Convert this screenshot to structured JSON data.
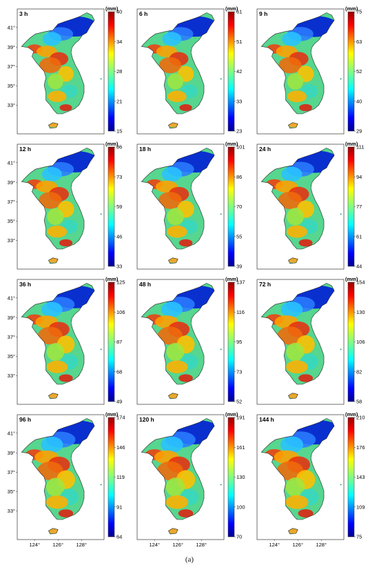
{
  "figure": {
    "caption": "(a)",
    "unit_label": "(mm)",
    "lat_ticks": [
      "41°",
      "39°",
      "37°",
      "35°",
      "33°"
    ],
    "lon_ticks": [
      "124°",
      "126°",
      "128°"
    ],
    "colors": {
      "low": "#0000b0",
      "mid": "#8fe04f",
      "high": "#e50000"
    }
  },
  "panels": [
    {
      "title": "3 h",
      "colorbar_ticks": [
        "40",
        "34",
        "28",
        "21",
        "15"
      ]
    },
    {
      "title": "6 h",
      "colorbar_ticks": [
        "61",
        "51",
        "42",
        "33",
        "23"
      ]
    },
    {
      "title": "9 h",
      "colorbar_ticks": [
        "75",
        "63",
        "52",
        "40",
        "29"
      ]
    },
    {
      "title": "12 h",
      "colorbar_ticks": [
        "86",
        "73",
        "59",
        "46",
        "33"
      ]
    },
    {
      "title": "18 h",
      "colorbar_ticks": [
        "101",
        "86",
        "70",
        "55",
        "39"
      ]
    },
    {
      "title": "24 h",
      "colorbar_ticks": [
        "111",
        "94",
        "77",
        "61",
        "44"
      ]
    },
    {
      "title": "36 h",
      "colorbar_ticks": [
        "125",
        "106",
        "87",
        "68",
        "49"
      ]
    },
    {
      "title": "48 h",
      "colorbar_ticks": [
        "137",
        "116",
        "95",
        "73",
        "52"
      ]
    },
    {
      "title": "72 h",
      "colorbar_ticks": [
        "154",
        "130",
        "106",
        "82",
        "58"
      ]
    },
    {
      "title": "96 h",
      "colorbar_ticks": [
        "174",
        "146",
        "119",
        "91",
        "64"
      ]
    },
    {
      "title": "120 h",
      "colorbar_ticks": [
        "191",
        "161",
        "130",
        "100",
        "70"
      ]
    },
    {
      "title": "144 h",
      "colorbar_ticks": [
        "210",
        "176",
        "143",
        "109",
        "75"
      ]
    }
  ]
}
